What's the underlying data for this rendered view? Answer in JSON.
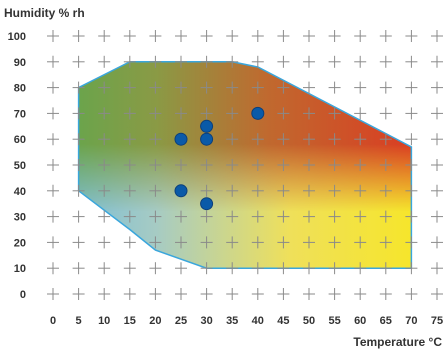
{
  "chart_data": {
    "type": "scatter",
    "title": "",
    "ylabel": "Humidity % rh",
    "xlabel": "Temperature °C",
    "x_ticks": [
      0,
      5,
      10,
      15,
      20,
      25,
      30,
      35,
      40,
      45,
      50,
      55,
      60,
      65,
      70,
      75
    ],
    "y_ticks": [
      0,
      10,
      20,
      30,
      40,
      50,
      60,
      70,
      80,
      90,
      100
    ],
    "xlim": [
      0,
      75
    ],
    "ylim": [
      0,
      100
    ],
    "grid": "plus-markers",
    "region_outline": [
      [
        5,
        40
      ],
      [
        5,
        80
      ],
      [
        15,
        90
      ],
      [
        35,
        90
      ],
      [
        40,
        88
      ],
      [
        70,
        57
      ],
      [
        70,
        10
      ],
      [
        30,
        10
      ],
      [
        20,
        17
      ],
      [
        15,
        25
      ]
    ],
    "points": [
      {
        "x": 25,
        "y": 60
      },
      {
        "x": 30,
        "y": 65
      },
      {
        "x": 30,
        "y": 60
      },
      {
        "x": 40,
        "y": 70
      },
      {
        "x": 25,
        "y": 40
      },
      {
        "x": 30,
        "y": 35
      }
    ],
    "colors": {
      "region_outline": "#3aa6dc",
      "point_fill": "#0a5aa8",
      "point_stroke": "#0c3f7a",
      "green": "#4caf50",
      "blue": "#5ab4e0",
      "orange": "#e07a2c",
      "red": "#df3a25",
      "yellow": "#f6e625"
    }
  }
}
